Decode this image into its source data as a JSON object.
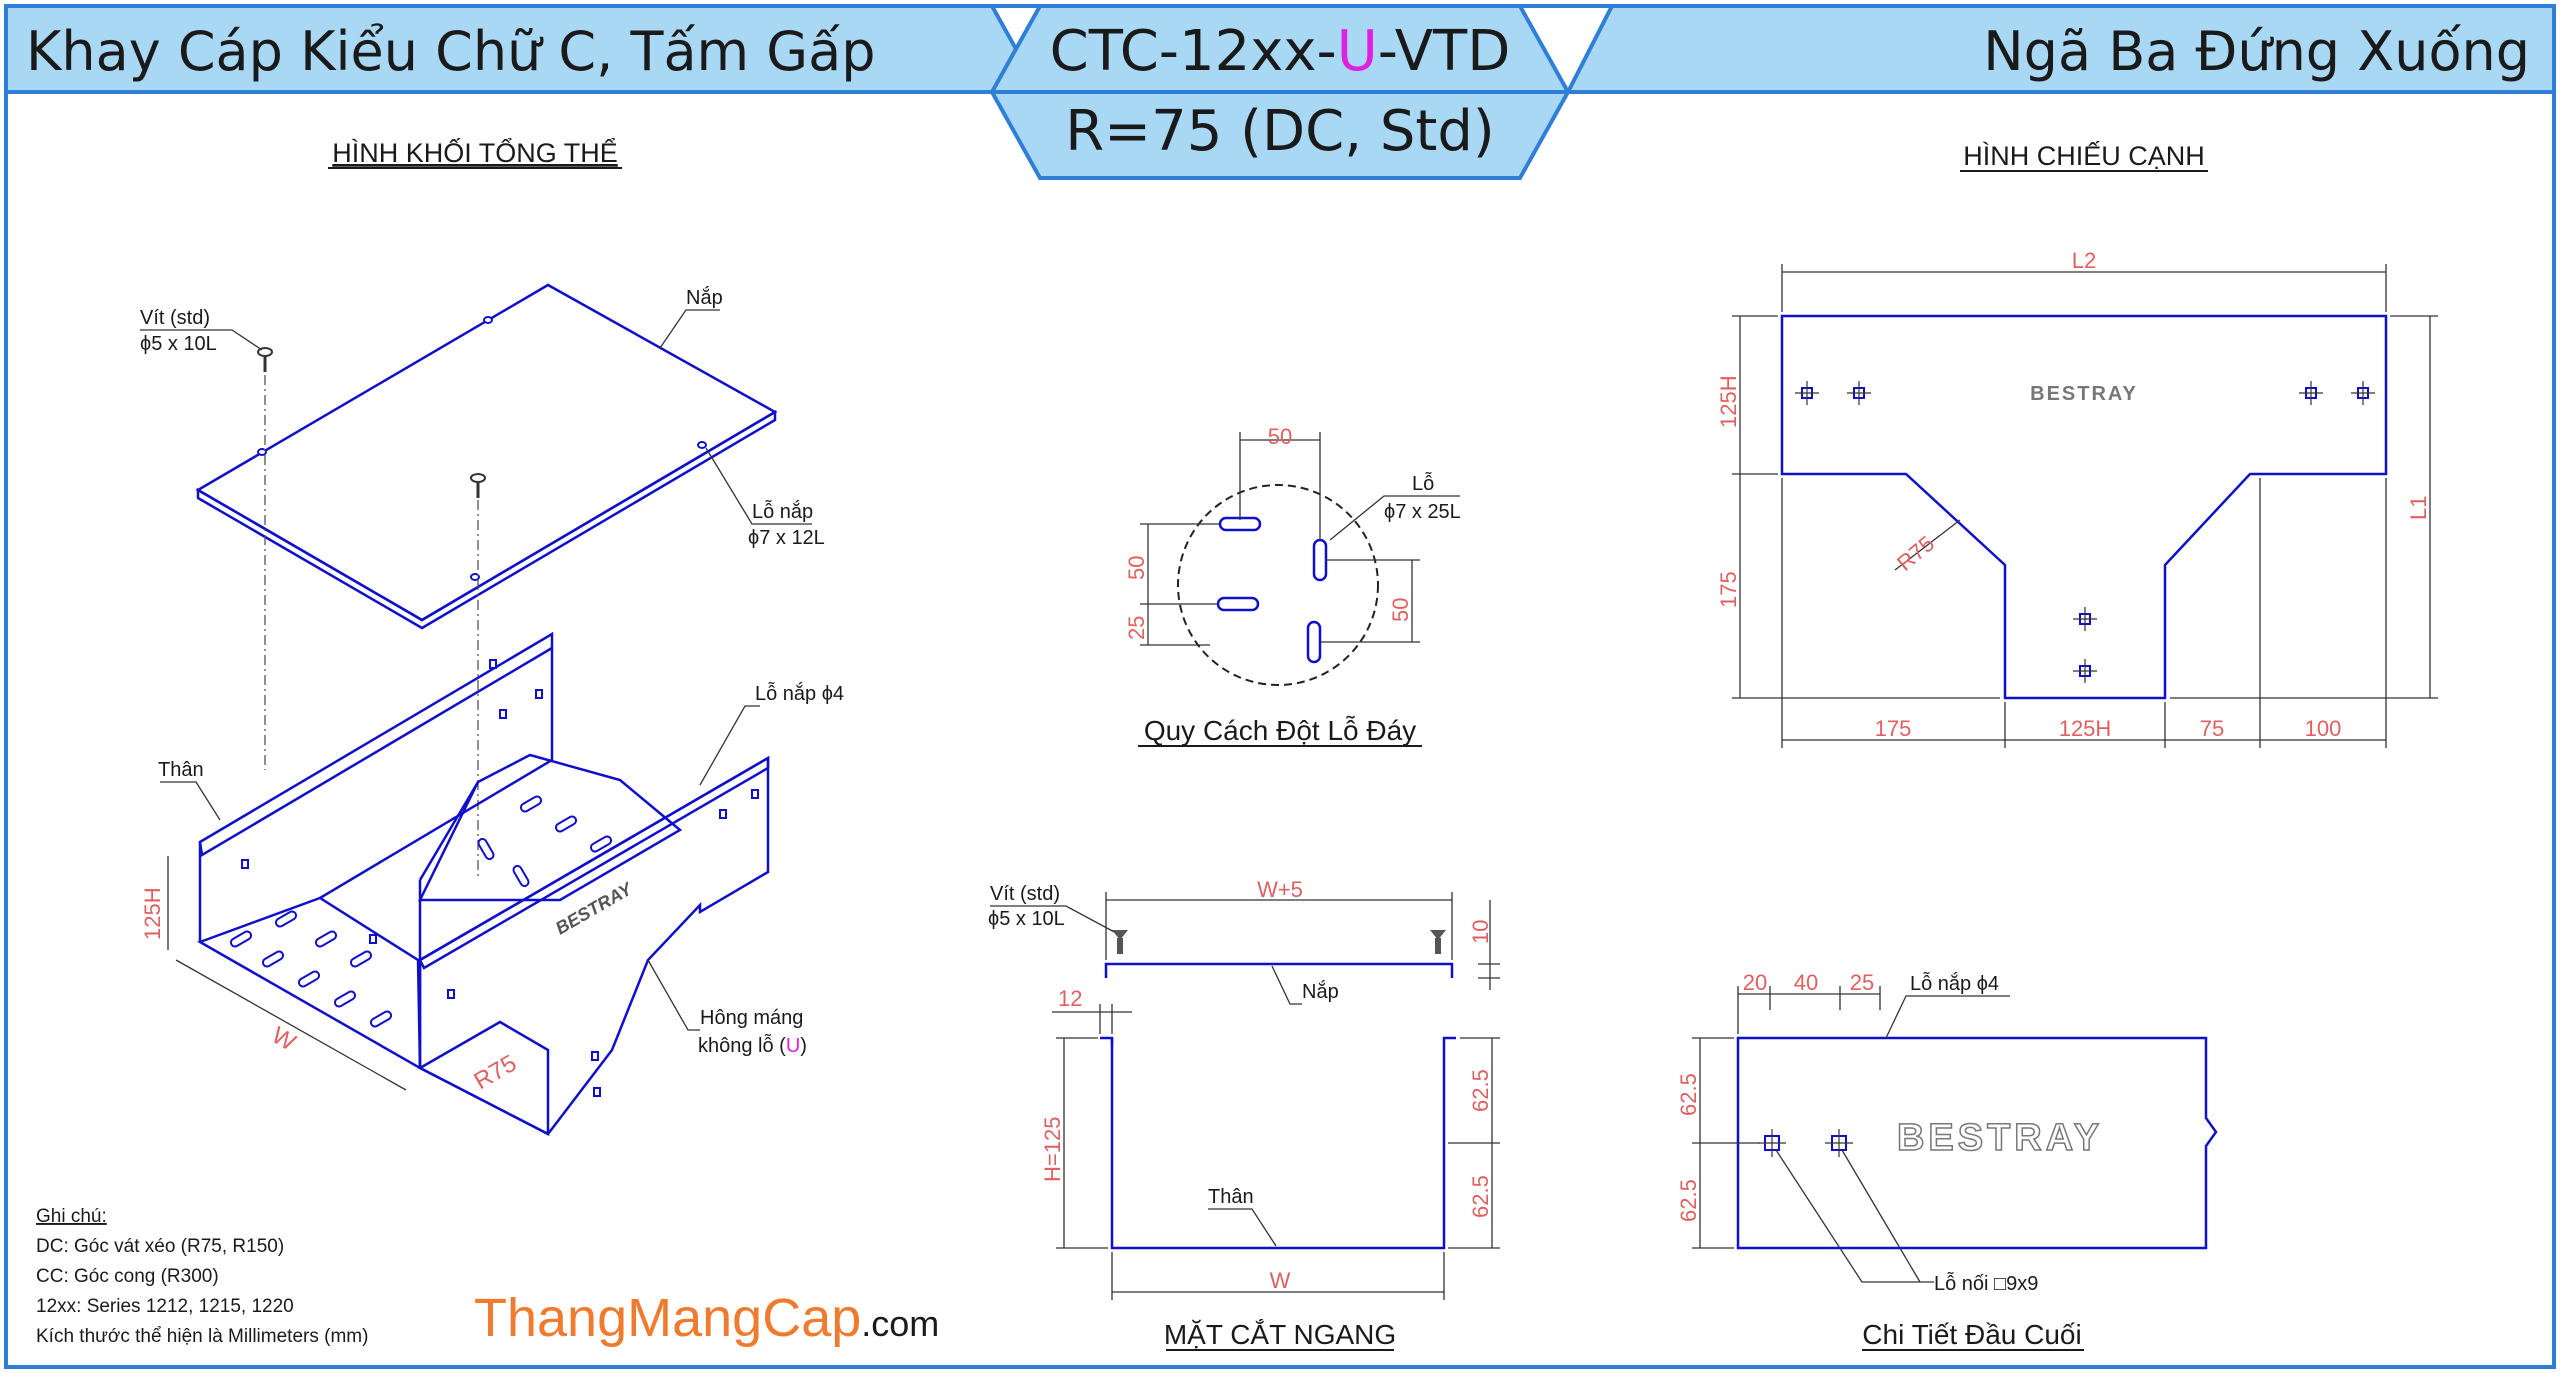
{
  "header": {
    "left_title": "Khay Cáp Kiểu Chữ C, Tấm Gấp",
    "code_prefix": "CTC-12xx-",
    "code_variant": "U",
    "code_suffix": "-VTD",
    "spec": "R=75 (DC, Std)",
    "right_title": "Ngã Ba Đứng Xuống"
  },
  "colors": {
    "header_bg": "#a9d8f5",
    "border": "#2f7fd6",
    "line": "#1010cc",
    "dimension": "#e06060",
    "accent": "#e020e0",
    "brand": "#f07b2e"
  },
  "iso_view": {
    "title": "HÌNH KHỐI TỔNG THỂ",
    "screw_label_1": "Vít (std)",
    "screw_label_2": "ϕ5 x 10L",
    "cover_label": "Nắp",
    "cover_hole_1": "Lỗ nắp",
    "cover_hole_2": "ϕ7 x 12L",
    "lid_hole": "Lỗ nắp ϕ4",
    "body_label": "Thân",
    "height_dim": "125H",
    "width_dim": "W",
    "radius_dim": "R75",
    "side_note_1": "Hông máng",
    "side_note_2_prefix": "không lỗ (",
    "side_note_2_variant": "U",
    "side_note_2_suffix": ")",
    "brand_mark": "BESTRAY"
  },
  "punch_view": {
    "title": "Quy Cách Đột Lỗ Đáy",
    "top_dim": "50",
    "left_dim_1": "50",
    "left_dim_2": "25",
    "right_dim": "50",
    "hole_label_1": "Lỗ",
    "hole_label_2": "ϕ7 x 25L"
  },
  "side_view": {
    "title": "HÌNH CHIẾU CẠNH",
    "top_dim": "L2",
    "left_dim_1": "125H",
    "left_dim_2": "175",
    "right_dim": "L1",
    "bottom_dims": [
      "175",
      "125H",
      "75",
      "100"
    ],
    "radius_dim": "R75",
    "brand_mark": "BESTRAY"
  },
  "section_view": {
    "title": "MẶT CẮT NGANG",
    "screw_label_1": "Vít (std)",
    "screw_label_2": "ϕ5 x 10L",
    "top_dim": "W+5",
    "gap_dim": "10",
    "lip_dim": "12",
    "cover_label": "Nắp",
    "height_dim": "H=125",
    "right_dim_1": "62.5",
    "right_dim_2": "62.5",
    "body_label": "Thân",
    "bottom_dim": "W"
  },
  "end_view": {
    "title": "Chi Tiết Đầu Cuối",
    "top_dims": [
      "20",
      "40",
      "25"
    ],
    "lid_hole": "Lỗ nắp ϕ4",
    "left_dim_1": "62.5",
    "left_dim_2": "62.5",
    "joint_hole": "Lỗ nối □9x9",
    "brand_mark": "BESTRAY"
  },
  "notes": {
    "heading": "Ghi chú:",
    "lines": [
      "DC: Góc vát xéo (R75, R150)",
      "CC: Góc cong (R300)",
      "12xx: Series 1212, 1215, 1220",
      "Kích thước thể hiện là Millimeters (mm)"
    ]
  },
  "brand": {
    "name": "ThangMangCap",
    "tld": ".com"
  }
}
